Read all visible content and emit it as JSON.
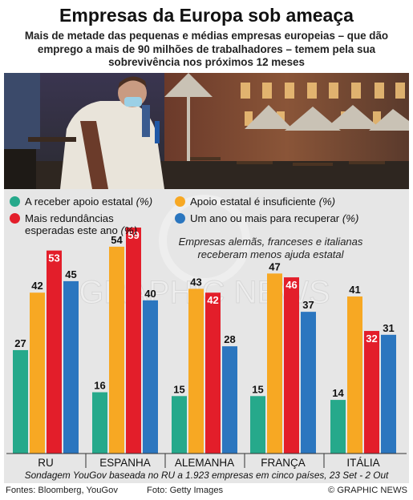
{
  "title": "Empresas da Europa sob ameaça",
  "subtitle": "Mais de metade das pequenas e médias empresas europeias – que dão emprego a mais de 90 milhões de trabalhadores – temem pela sua sobrevivência nos próximos 12 meses",
  "annotation": "Empresas alemãs, franceses e italianas receberam menos ajuda estatal",
  "footnote": "Sondagem YouGov baseada no RU a 1.923 empresas em cinco países, 23 Set - 2 Out",
  "sources": "Fontes: Bloomberg, YouGov",
  "photo_credit": "Foto: Getty Images",
  "copyright": "© GRAPHIC NEWS",
  "watermark": "GRAPHIC NEWS",
  "legend": [
    {
      "label": "A receber apoio estatal",
      "unit": "(%)"
    },
    {
      "label": "Apoio estatal é insuficiente",
      "unit": "(%)"
    },
    {
      "label": "Mais redundâncias esperadas este ano",
      "unit": "(%)"
    },
    {
      "label": "Um ano ou mais para recuperar",
      "unit": "(%)"
    }
  ],
  "colors": {
    "teal": "#26a98b",
    "orange": "#f7a823",
    "red": "#e31e2a",
    "blue": "#2b76bf"
  },
  "chart_data": {
    "type": "bar",
    "categories": [
      "RU",
      "ESPANHA",
      "ALEMANHA",
      "FRANÇA",
      "ITÁLIA"
    ],
    "series": [
      {
        "name": "A receber apoio estatal (%)",
        "values": [
          27,
          16,
          15,
          15,
          14
        ]
      },
      {
        "name": "Apoio estatal é insuficiente (%)",
        "values": [
          42,
          54,
          43,
          47,
          41
        ]
      },
      {
        "name": "Mais redundâncias esperadas este ano (%)",
        "values": [
          53,
          59,
          42,
          46,
          32
        ]
      },
      {
        "name": "Um ano ou mais para recuperar (%)",
        "values": [
          45,
          40,
          28,
          37,
          31
        ]
      }
    ],
    "ylim": [
      0,
      60
    ]
  }
}
